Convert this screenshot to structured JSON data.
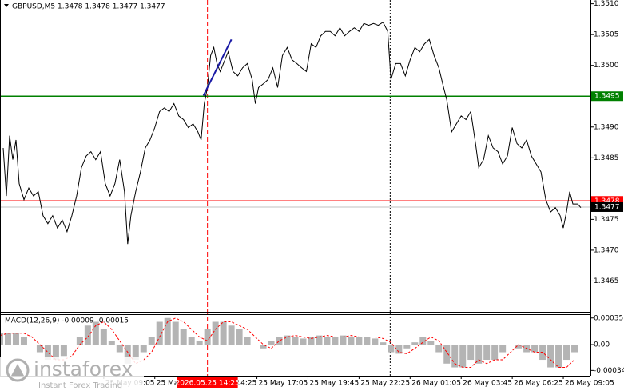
{
  "chart_data": [
    {
      "type": "line",
      "title": "GBPUSD,M5  1.3478 1.3478 1.3477 1.3477",
      "color": "#000000",
      "x": [
        2,
        4,
        6,
        8,
        10,
        12,
        15,
        18,
        21,
        24,
        27,
        30,
        33,
        36,
        39,
        42,
        45,
        48,
        51,
        54,
        57,
        60,
        63,
        66,
        69,
        72,
        75,
        78,
        80,
        82,
        85,
        88,
        91,
        94,
        97,
        100,
        103,
        106,
        109,
        112,
        115,
        118,
        121,
        124,
        126,
        128,
        130,
        132,
        134,
        136,
        138,
        140,
        143,
        146,
        149,
        152,
        155,
        158,
        160,
        162,
        165,
        168,
        171,
        174,
        177,
        180,
        183,
        186,
        189,
        192,
        195,
        198,
        201,
        204,
        207,
        210,
        213,
        216,
        219,
        222,
        225,
        228,
        231,
        234,
        237,
        240,
        243,
        245,
        248,
        251,
        254,
        257,
        260,
        263,
        266,
        269,
        272,
        275,
        278,
        280,
        283,
        286,
        289,
        292,
        295,
        298,
        300,
        303,
        306,
        309,
        312,
        315,
        318,
        321,
        324,
        327,
        330,
        333,
        336,
        339,
        342,
        345,
        348,
        351,
        353,
        355,
        357,
        359,
        362,
        364
      ],
      "values": [
        1.34866,
        1.34788,
        1.34886,
        1.34847,
        1.34879,
        1.34808,
        1.34782,
        1.34801,
        1.34788,
        1.34795,
        1.34756,
        1.34743,
        1.34756,
        1.34736,
        1.34749,
        1.3473,
        1.34756,
        1.34788,
        1.34834,
        1.34853,
        1.3486,
        1.34847,
        1.3486,
        1.34808,
        1.34788,
        1.34808,
        1.34847,
        1.34795,
        1.3471,
        1.34756,
        1.34795,
        1.34827,
        1.34866,
        1.34879,
        1.34899,
        1.34925,
        1.34931,
        1.34925,
        1.34938,
        1.34918,
        1.34912,
        1.34899,
        1.34905,
        1.34892,
        1.34879,
        1.34938,
        1.34964,
        1.35016,
        1.35029,
        1.35003,
        1.3499,
        1.35003,
        1.35022,
        1.3499,
        1.34983,
        1.34996,
        1.35003,
        1.34977,
        1.34938,
        1.34964,
        1.3497,
        1.34977,
        1.34996,
        1.34964,
        1.35016,
        1.35029,
        1.35009,
        1.35003,
        1.34996,
        1.3499,
        1.35035,
        1.35029,
        1.35048,
        1.35055,
        1.35055,
        1.35048,
        1.35061,
        1.35048,
        1.35055,
        1.35061,
        1.35055,
        1.35068,
        1.35065,
        1.35068,
        1.35065,
        1.3507,
        1.35055,
        1.34977,
        1.35003,
        1.35003,
        1.34983,
        1.35009,
        1.35029,
        1.35022,
        1.35035,
        1.35042,
        1.35016,
        1.34996,
        1.34964,
        1.34944,
        1.34892,
        1.34905,
        1.34918,
        1.34912,
        1.34925,
        1.34873,
        1.34834,
        1.34847,
        1.34886,
        1.34866,
        1.3486,
        1.3484,
        1.34853,
        1.34899,
        1.34873,
        1.34866,
        1.34879,
        1.34853,
        1.3484,
        1.34827,
        1.34782,
        1.34762,
        1.34769,
        1.34756,
        1.34736,
        1.34762,
        1.34795,
        1.34775,
        1.34775,
        1.34769
      ],
      "xlim": [
        0,
        370
      ],
      "ylim": [
        1.346,
        1.35106
      ],
      "yticks": [
        1.3465,
        {
          "value": 1.347,
          "label": "1.3470"
        },
        1.3475,
        1.3485,
        {
          "value": 1.349,
          "label": "1.3490"
        },
        {
          "value": 1.35,
          "label": "1.3500"
        },
        1.3505,
        {
          "value": 1.351,
          "label": "1.3510"
        }
      ],
      "xticks": [
        {
          "value": 65,
          "label": "25 May 09:05"
        },
        {
          "value": 97,
          "label": "25 May 11:45"
        },
        {
          "value": 129,
          "label": "25 May 14:25"
        },
        {
          "value": 161,
          "label": "25 May 17:05"
        },
        {
          "value": 193,
          "label": "25 May 19:45"
        },
        {
          "value": 225,
          "label": "25 May 22:25"
        },
        {
          "value": 257,
          "label": "26 May 01:05"
        },
        {
          "value": 289,
          "label": "26 May 03:45"
        },
        {
          "value": 321,
          "label": "26 May 06:25"
        },
        {
          "value": 353,
          "label": "26 May 09:05"
        }
      ],
      "hlines": [
        {
          "value": 1.3495,
          "color": "#008000"
        },
        {
          "value": 1.3478,
          "color": "#ff0000"
        },
        {
          "value": 1.3477,
          "color": "#000000"
        }
      ],
      "trendline": {
        "x": [
          127.5,
          145
        ],
        "values": [
          1.34951,
          1.35042
        ],
        "color": "#1a1aa6"
      },
      "crosshair": {
        "x": 130,
        "label": "2026.05.25 14:25",
        "color": "#ff0000"
      },
      "separator_x": 244.5
    },
    {
      "type": "bar",
      "title": "MACD(12,26,9) -0.00009 -0.00015",
      "color": "#b4b4b4",
      "signal_color": "#ff0000",
      "x": [
        0,
        5,
        10,
        15,
        20,
        25,
        30,
        35,
        40,
        45,
        50,
        55,
        60,
        65,
        70,
        75,
        80,
        85,
        90,
        95,
        100,
        105,
        110,
        115,
        120,
        125,
        130,
        135,
        140,
        145,
        150,
        155,
        160,
        165,
        170,
        175,
        180,
        185,
        190,
        195,
        200,
        205,
        210,
        215,
        220,
        225,
        230,
        235,
        240,
        245,
        250,
        255,
        260,
        265,
        270,
        275,
        280,
        285,
        290,
        295,
        300,
        305,
        310,
        315,
        320,
        325,
        330,
        335,
        340,
        345,
        350,
        355,
        360
      ],
      "values": [
        0.00015,
        0.00015,
        0.00015,
        0.0001,
        0,
        -0.0001,
        -0.0002,
        -0.0002,
        -0.00015,
        0,
        0.0001,
        0.00025,
        0.0003,
        0.0002,
        5e-05,
        -0.0001,
        -0.00025,
        -0.0002,
        -0.0001,
        0.0001,
        0.0003,
        0.00035,
        0.0003,
        0.0002,
        0.0001,
        5e-05,
        0.0002,
        0.0003,
        0.0003,
        0.00025,
        0.0002,
        0.0001,
        0,
        -5e-05,
        5e-05,
        0.0001,
        0.00012,
        0.0001,
        8e-05,
        0.0001,
        0.00012,
        0.0001,
        0.0001,
        0.00012,
        0.0001,
        0.0001,
        0.0001,
        8e-05,
        3e-05,
        -0.0001,
        -0.00012,
        -5e-05,
        3e-05,
        0.0001,
        5e-05,
        -0.0001,
        -0.00025,
        -0.0003,
        -0.0003,
        -0.0002,
        -0.00025,
        -0.0002,
        -0.0002,
        -0.0001,
        0,
        -5e-05,
        -0.0001,
        -0.0001,
        -0.0002,
        -0.0003,
        -0.0003,
        -0.0002,
        -0.0001
      ],
      "signal": [
        0.00012,
        0.00015,
        0.00015,
        0.00015,
        0.0001,
        0,
        -0.0001,
        -0.0002,
        -0.0002,
        -0.00015,
        0,
        0.0001,
        0.00025,
        0.0003,
        0.0002,
        5e-05,
        -0.0001,
        -0.00025,
        -0.0002,
        -0.0001,
        0.0001,
        0.0003,
        0.00035,
        0.0003,
        0.0002,
        0.0001,
        5e-05,
        0.0002,
        0.0003,
        0.0003,
        0.00025,
        0.0002,
        0.0001,
        0,
        -5e-05,
        5e-05,
        0.0001,
        0.00012,
        0.0001,
        8e-05,
        0.0001,
        0.00012,
        0.0001,
        0.0001,
        0.00012,
        0.0001,
        0.0001,
        0.0001,
        8e-05,
        3e-05,
        -0.0001,
        -0.00012,
        -5e-05,
        3e-05,
        0.0001,
        5e-05,
        -0.0001,
        -0.00025,
        -0.0003,
        -0.0003,
        -0.0002,
        -0.00025,
        -0.0002,
        -0.0002,
        -0.0001,
        0,
        -5e-05,
        -0.0001,
        -0.0001,
        -0.0002,
        -0.0003,
        -0.0003,
        -0.0002
      ],
      "xlim": [
        0,
        370
      ],
      "ylim": [
        -0.00041,
        0.0004
      ],
      "yticks": [
        0.00035,
        {
          "value": 0,
          "label": "0.00"
        },
        -0.00034
      ]
    }
  ],
  "watermark": {
    "brand": "instaforex",
    "tagline": "Instant Forex Trading"
  }
}
